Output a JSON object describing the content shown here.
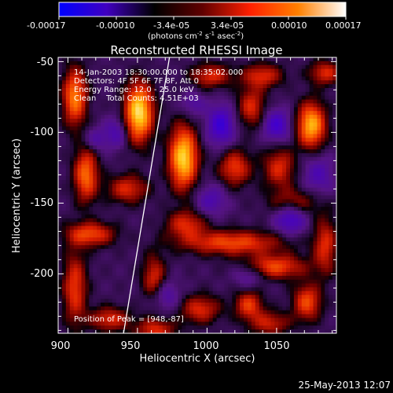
{
  "chart_data": {
    "type": "heatmap",
    "title": "Reconstructed RHESSI Image",
    "colorbar": {
      "ticks": [
        "-0.00017",
        "-0.00010",
        "-3.4e-05",
        "3.4e-05",
        "0.00010",
        "0.00017"
      ],
      "unit": "(photons cm",
      "unit_exp1": "-2",
      "unit_s": " s",
      "unit_exp2": "-1",
      "unit_asec": " asec",
      "unit_exp3": "-2",
      "unit_close": ")",
      "range": [
        -0.00017,
        0.00017
      ],
      "colors": [
        "#0000ff",
        "#4000c0",
        "#000000",
        "#600000",
        "#ff2000",
        "#ff8000",
        "#ffffff"
      ]
    },
    "xlabel": "Heliocentric X (arcsec)",
    "ylabel": "Heliocentric Y (arcsec)",
    "xlim": [
      893,
      1093
    ],
    "ylim": [
      -242,
      -47
    ],
    "xticks": [
      900,
      950,
      1000,
      1050
    ],
    "yticks": [
      -50,
      -100,
      -150,
      -200
    ],
    "annotations": {
      "time_range": "14-Jan-2003 18:30:00.000 to 18:35:02.000",
      "detectors": "Detectors: 4F 5F 6F 7F 8F, Att 0",
      "energy_range": "Energy Range: 12.0 - 25.0 keV",
      "method_counts": "Clean    Total Counts: 4.51E+03",
      "peak": "Position of Peak = [948,-87]"
    },
    "peak_position": [
      948,
      -87
    ],
    "limb": [
      [
        973,
        -47
      ],
      [
        940,
        -242
      ]
    ],
    "sources": [
      {
        "x": 951,
        "y": -86,
        "amp": 1.0,
        "sx": 7,
        "sy": 14
      },
      {
        "x": 983,
        "y": -118,
        "amp": 0.95,
        "sx": 7,
        "sy": 15
      },
      {
        "x": 1075,
        "y": -95,
        "amp": 0.85,
        "sx": 7,
        "sy": 11
      },
      {
        "x": 905,
        "y": -75,
        "amp": 0.7,
        "sx": 6,
        "sy": 14
      },
      {
        "x": 913,
        "y": -130,
        "amp": 0.65,
        "sx": 6,
        "sy": 13
      },
      {
        "x": 916,
        "y": -172,
        "amp": 0.55,
        "sx": 12,
        "sy": 6
      },
      {
        "x": 905,
        "y": -210,
        "amp": 0.5,
        "sx": 6,
        "sy": 18
      },
      {
        "x": 930,
        "y": -232,
        "amp": 0.45,
        "sx": 10,
        "sy": 6
      },
      {
        "x": 962,
        "y": -205,
        "amp": 0.5,
        "sx": 6,
        "sy": 12
      },
      {
        "x": 963,
        "y": -240,
        "amp": 0.45,
        "sx": 10,
        "sy": 6
      },
      {
        "x": 1018,
        "y": -178,
        "amp": 0.55,
        "sx": 25,
        "sy": 6
      },
      {
        "x": 1048,
        "y": -195,
        "amp": 0.55,
        "sx": 16,
        "sy": 6
      },
      {
        "x": 1030,
        "y": -222,
        "amp": 0.5,
        "sx": 7,
        "sy": 7
      },
      {
        "x": 1072,
        "y": -220,
        "amp": 0.55,
        "sx": 7,
        "sy": 9
      },
      {
        "x": 1085,
        "y": -180,
        "amp": 0.45,
        "sx": 6,
        "sy": 14
      },
      {
        "x": 1020,
        "y": -125,
        "amp": 0.5,
        "sx": 8,
        "sy": 9
      },
      {
        "x": 1052,
        "y": -125,
        "amp": 0.45,
        "sx": 8,
        "sy": 10
      },
      {
        "x": 1003,
        "y": -60,
        "amp": 0.45,
        "sx": 10,
        "sy": 6
      },
      {
        "x": 1040,
        "y": -60,
        "amp": 0.45,
        "sx": 10,
        "sy": 6
      },
      {
        "x": 1085,
        "y": -58,
        "amp": 0.45,
        "sx": 8,
        "sy": 6
      },
      {
        "x": 943,
        "y": -140,
        "amp": 0.45,
        "sx": 10,
        "sy": 7
      },
      {
        "x": 985,
        "y": -165,
        "amp": 0.45,
        "sx": 10,
        "sy": 7
      },
      {
        "x": 995,
        "y": -225,
        "amp": 0.45,
        "sx": 10,
        "sy": 7
      },
      {
        "x": 1045,
        "y": -235,
        "amp": 0.4,
        "sx": 10,
        "sy": 6
      },
      {
        "x": 1062,
        "y": -150,
        "amp": 0.4,
        "sx": 12,
        "sy": 7
      },
      {
        "x": 1032,
        "y": -82,
        "amp": 0.45,
        "sx": 7,
        "sy": 10
      },
      {
        "x": 1010,
        "y": -95,
        "amp": -0.5,
        "sx": 7,
        "sy": 10
      },
      {
        "x": 1050,
        "y": -95,
        "amp": -0.45,
        "sx": 7,
        "sy": 8
      },
      {
        "x": 1060,
        "y": -160,
        "amp": -0.5,
        "sx": 8,
        "sy": 8
      },
      {
        "x": 968,
        "y": -215,
        "amp": -0.35,
        "sx": 8,
        "sy": 8
      },
      {
        "x": 1030,
        "y": -200,
        "amp": -0.3,
        "sx": 8,
        "sy": 6
      },
      {
        "x": 1080,
        "y": -130,
        "amp": -0.3,
        "sx": 8,
        "sy": 10
      },
      {
        "x": 935,
        "y": -100,
        "amp": -0.3,
        "sx": 6,
        "sy": 8
      },
      {
        "x": 920,
        "y": -105,
        "amp": -0.25,
        "sx": 6,
        "sy": 6
      },
      {
        "x": 1003,
        "y": -148,
        "amp": -0.3,
        "sx": 8,
        "sy": 8
      },
      {
        "x": 990,
        "y": -80,
        "amp": -0.25,
        "sx": 6,
        "sy": 6
      }
    ]
  },
  "footer": {
    "timestamp": "25-May-2013 12:07"
  }
}
